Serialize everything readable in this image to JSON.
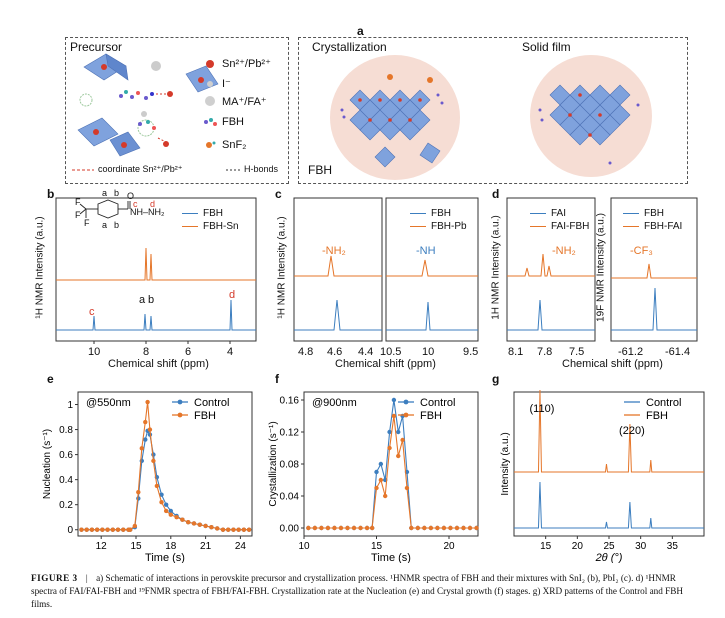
{
  "colors": {
    "blue": "#3c7ebf",
    "orange": "#e5762a",
    "red": "#d43a2a"
  },
  "panel_a": {
    "letter": "a",
    "precursor_title": "Precursor",
    "crystallization_title": "Crystallization",
    "solid_film_title": "Solid film",
    "fbh_label": "FBH",
    "legend": [
      {
        "symbol": "sn-pb-ball",
        "label": "Sn²⁺/Pb²⁺"
      },
      {
        "symbol": "iodide-ball",
        "label": "I⁻"
      },
      {
        "symbol": "ma-fa-ball",
        "label": "MA⁺/FA⁺"
      },
      {
        "symbol": "fbh-molecule",
        "label": "FBH"
      },
      {
        "symbol": "snf2-molecule",
        "label": "SnF₂"
      }
    ],
    "coordinate_label": "coordinate Sn²⁺/Pb²⁺",
    "hbond_label": "H-bonds"
  },
  "panel_b": {
    "letter": "b",
    "ylabel": "¹H NMR Intensity (a.u.)",
    "xlabel": "Chemical shift (ppm)",
    "xticks": [
      "10",
      "8",
      "6",
      "4"
    ],
    "legend": [
      "FBH",
      "FBH-Sn"
    ],
    "peak_labels": [
      "c",
      "a",
      "b",
      "d"
    ],
    "struct_labels": {
      "F1": "F",
      "F2": "F",
      "F3": "F",
      "a1": "a",
      "b1": "b",
      "a2": "a",
      "b2": "b",
      "c": "c",
      "d": "d",
      "O": "O",
      "nh": "NH–NH₂"
    }
  },
  "panel_c": {
    "letter": "c",
    "ylabel": "¹H NMR Intensity (a.u.)",
    "xlabel": "Chemical shift (ppm)",
    "left_xticks": [
      "4.8",
      "4.6",
      "4.4"
    ],
    "right_xticks": [
      "10.5",
      "10",
      "9.5"
    ],
    "legend": [
      "FBH",
      "FBH-Pb"
    ],
    "nh2_label": "-NH₂",
    "nh_label": "-NH"
  },
  "panel_d": {
    "letter": "d",
    "ylabel_left": "1H NMR Intensity (a.u.)",
    "ylabel_right": "19F NMR Intensity (a.u.)",
    "xlabel": "Chemical shift (ppm)",
    "left_xticks": [
      "8.1",
      "7.8",
      "7.5"
    ],
    "right_xticks": [
      "-61.2",
      "-61.4"
    ],
    "legend_left": [
      "FAI",
      "FAI-FBH"
    ],
    "legend_right": [
      "FBH",
      "FBH-FAI"
    ],
    "nh2_label": "-NH₂",
    "cf3_label": "-CF₃"
  },
  "chart_data": [
    {
      "id": "e",
      "type": "line",
      "annotation": "@550nm",
      "xlabel": "Time (s)",
      "ylabel": "Nucleation (s⁻¹)",
      "xlim": [
        10,
        25
      ],
      "ylim": [
        -0.05,
        1.1
      ],
      "xticks": [
        12,
        15,
        18,
        21,
        24
      ],
      "yticks": [
        0,
        0.2,
        0.4,
        0.6,
        0.8,
        1
      ],
      "series": [
        {
          "name": "Control",
          "color": "#3c7ebf",
          "x": [
            14.5,
            14.9,
            15.2,
            15.5,
            15.8,
            16.0,
            16.2,
            16.5,
            16.8,
            17.2,
            17.6,
            18.0,
            18.5,
            19.0,
            19.5,
            20.0,
            20.5,
            21.0,
            21.5,
            22.0,
            22.5
          ],
          "y": [
            0.0,
            0.02,
            0.25,
            0.55,
            0.72,
            0.79,
            0.76,
            0.6,
            0.42,
            0.28,
            0.2,
            0.15,
            0.11,
            0.08,
            0.06,
            0.05,
            0.04,
            0.03,
            0.02,
            0.01,
            0.0
          ]
        },
        {
          "name": "FBH",
          "color": "#e5762a",
          "x": [
            14.5,
            14.9,
            15.2,
            15.5,
            15.8,
            16.0,
            16.2,
            16.5,
            16.8,
            17.2,
            17.6,
            18.0,
            18.5,
            19.0,
            19.5,
            20.0,
            20.5,
            21.0,
            21.5,
            22.0,
            22.5
          ],
          "y": [
            0.0,
            0.03,
            0.3,
            0.65,
            0.86,
            1.02,
            0.8,
            0.55,
            0.35,
            0.22,
            0.15,
            0.12,
            0.1,
            0.08,
            0.06,
            0.05,
            0.04,
            0.03,
            0.02,
            0.01,
            0.0
          ]
        }
      ]
    },
    {
      "id": "f",
      "type": "line",
      "annotation": "@900nm",
      "xlabel": "Time (s)",
      "ylabel": "Crystallization (s⁻¹)",
      "xlim": [
        10,
        22
      ],
      "ylim": [
        -0.01,
        0.17
      ],
      "xticks": [
        10,
        15,
        20
      ],
      "yticks": [
        0,
        0.04,
        0.08,
        0.12,
        0.16
      ],
      "series": [
        {
          "name": "Control",
          "color": "#3c7ebf",
          "x": [
            14.7,
            15.0,
            15.3,
            15.6,
            15.9,
            16.2,
            16.5,
            16.8,
            17.1,
            17.4
          ],
          "y": [
            0.0,
            0.07,
            0.08,
            0.06,
            0.12,
            0.16,
            0.12,
            0.14,
            0.07,
            0.0
          ]
        },
        {
          "name": "FBH",
          "color": "#e5762a",
          "x": [
            14.7,
            15.0,
            15.3,
            15.6,
            15.9,
            16.2,
            16.5,
            16.8,
            17.1,
            17.4
          ],
          "y": [
            0.0,
            0.05,
            0.06,
            0.04,
            0.1,
            0.14,
            0.09,
            0.11,
            0.05,
            0.0
          ]
        }
      ]
    },
    {
      "id": "g",
      "type": "line",
      "xlabel": "2θ (°)",
      "ylabel": "Intensity (a.u.)",
      "xlim": [
        10,
        40
      ],
      "xticks": [
        15,
        20,
        25,
        30,
        35
      ],
      "peak_labels": [
        "(110)",
        "(220)"
      ],
      "peaks_2theta": [
        14.1,
        28.3
      ],
      "series": [
        {
          "name": "Control",
          "color": "#3c7ebf"
        },
        {
          "name": "FBH",
          "color": "#e5762a"
        }
      ]
    }
  ],
  "caption": {
    "label": "FIGURE 3",
    "sep": "|",
    "text": "a) Schematic of interactions in perovskite precursor and crystallization process. ¹HNMR spectra of FBH and their mixtures with SnI₂ (b), PbI₂ (c). d) ¹HNMR spectra of FAI/FAI-FBH and ¹⁹FNMR spectra of FBH/FAI-FBH. Crystallization rate at the Nucleation (e) and Crystal growth (f) stages. g) XRD patterns of the Control and FBH films."
  }
}
